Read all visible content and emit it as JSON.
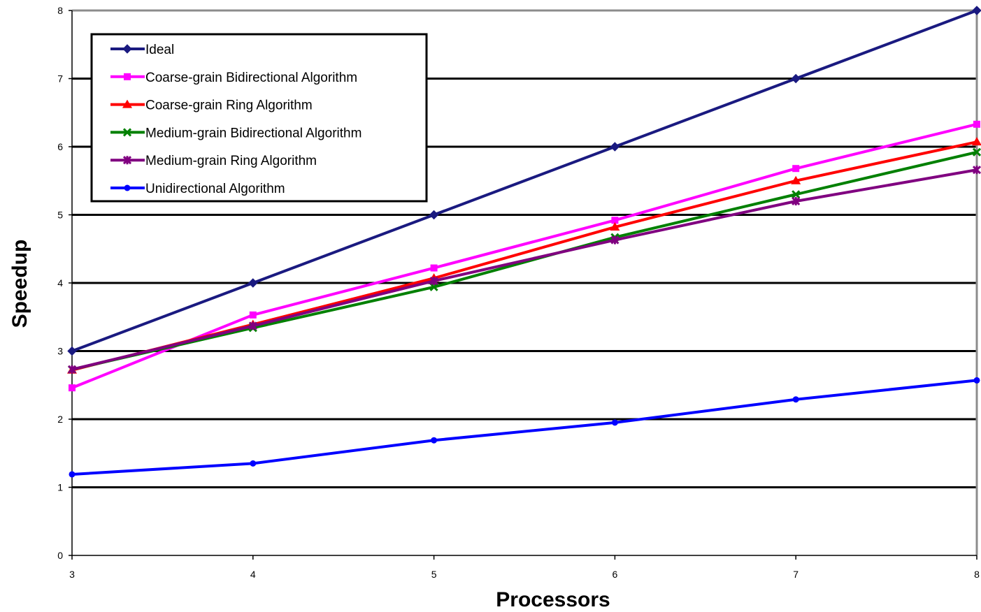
{
  "chart_data": {
    "type": "line",
    "title": "",
    "xlabel": "Processors",
    "ylabel": "Speedup",
    "x": [
      3,
      4,
      5,
      6,
      7,
      8
    ],
    "xlim": [
      3,
      8
    ],
    "ylim": [
      0,
      8
    ],
    "x_ticks": [
      "3",
      "4",
      "5",
      "6",
      "7",
      "8"
    ],
    "y_ticks": [
      "0",
      "1",
      "2",
      "3",
      "4",
      "5",
      "6",
      "7",
      "8"
    ],
    "grid": "horizontal",
    "legend_position": "top-left",
    "series": [
      {
        "name": "Ideal",
        "color": "#1a1a80",
        "marker": "diamond",
        "values": [
          3,
          4,
          5,
          6,
          7,
          8
        ]
      },
      {
        "name": "Coarse-grain Bidirectional Algorithm",
        "color": "#ff00ff",
        "marker": "square",
        "values": [
          2.46,
          3.53,
          4.22,
          4.92,
          5.68,
          6.33
        ]
      },
      {
        "name": "Coarse-grain Ring Algorithm",
        "color": "#ff0000",
        "marker": "triangle",
        "values": [
          2.72,
          3.39,
          4.07,
          4.82,
          5.5,
          6.07
        ]
      },
      {
        "name": "Medium-grain Bidirectional Algorithm",
        "color": "#008000",
        "marker": "x",
        "values": [
          2.73,
          3.34,
          3.94,
          4.67,
          5.3,
          5.92
        ]
      },
      {
        "name": "Medium-grain Ring Algorithm",
        "color": "#800080",
        "marker": "star",
        "values": [
          2.73,
          3.37,
          4.03,
          4.63,
          5.2,
          5.66
        ]
      },
      {
        "name": "Unidirectional Algorithm",
        "color": "#0000ff",
        "marker": "circle",
        "values": [
          1.19,
          1.35,
          1.69,
          1.95,
          2.29,
          2.57
        ]
      }
    ]
  }
}
